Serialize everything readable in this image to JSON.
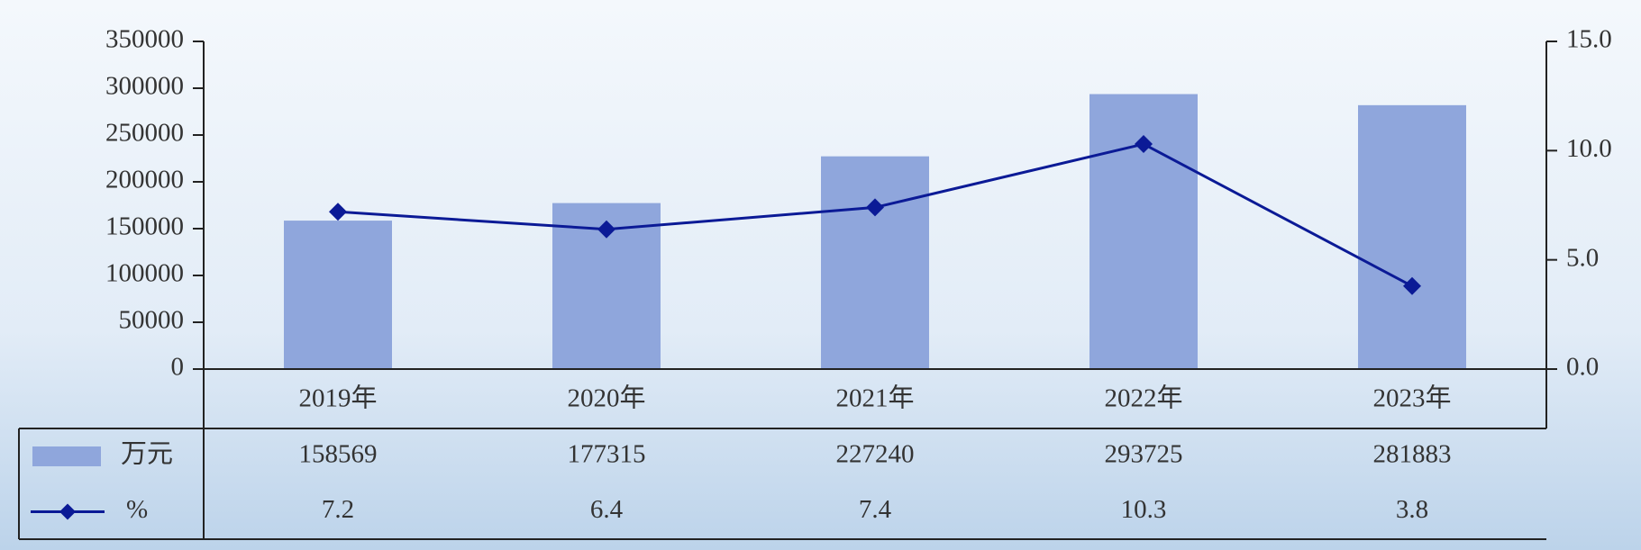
{
  "chart_data": {
    "type": "bar_line",
    "categories": [
      "2019年",
      "2020年",
      "2021年",
      "2022年",
      "2023年"
    ],
    "series": [
      {
        "name": "万元",
        "color": "#8fa6dc",
        "values": [
          158569,
          177315,
          227240,
          293725,
          281883
        ]
      },
      {
        "name": "%",
        "color": "#0b1a96",
        "axis": "y2",
        "values": [
          7.2,
          6.4,
          7.4,
          10.3,
          3.8
        ]
      }
    ],
    "ylim": [
      0,
      350000
    ],
    "yticks": [
      0,
      50000,
      100000,
      150000,
      200000,
      250000,
      300000,
      350000
    ],
    "y2lim": [
      0,
      15
    ],
    "y2ticks": [
      {
        "value": 0,
        "label": "0.0"
      },
      {
        "value": 5,
        "label": "5.0"
      },
      {
        "value": 10,
        "label": "10.0"
      },
      {
        "value": 15,
        "label": "15.0"
      }
    ],
    "grid": false
  }
}
